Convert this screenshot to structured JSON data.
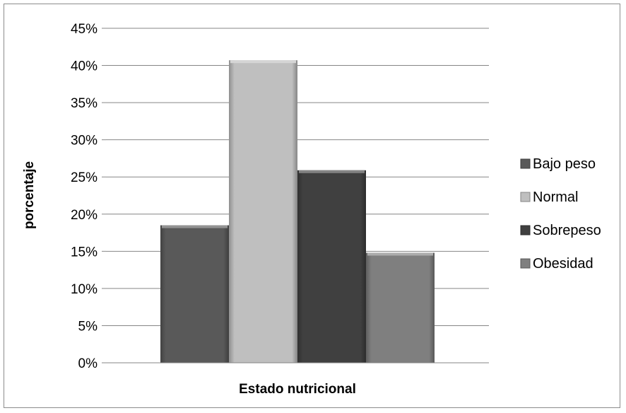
{
  "chart_data": {
    "type": "bar",
    "title": "",
    "xlabel": "Estado nutricional",
    "ylabel": "porcentaje",
    "ylim": [
      0,
      45
    ],
    "yticks": [
      "0%",
      "5%",
      "10%",
      "15%",
      "20%",
      "25%",
      "30%",
      "35%",
      "40%",
      "45%"
    ],
    "grid": true,
    "legend_position": "right",
    "series": [
      {
        "name": "Bajo peso",
        "values": [
          18.5
        ],
        "color": "#595959"
      },
      {
        "name": "Normal",
        "values": [
          40.7
        ],
        "color": "#bfbfbf"
      },
      {
        "name": "Sobrepeso",
        "values": [
          25.9
        ],
        "color": "#404040"
      },
      {
        "name": "Obesidad",
        "values": [
          14.8
        ],
        "color": "#7f7f7f"
      }
    ]
  }
}
